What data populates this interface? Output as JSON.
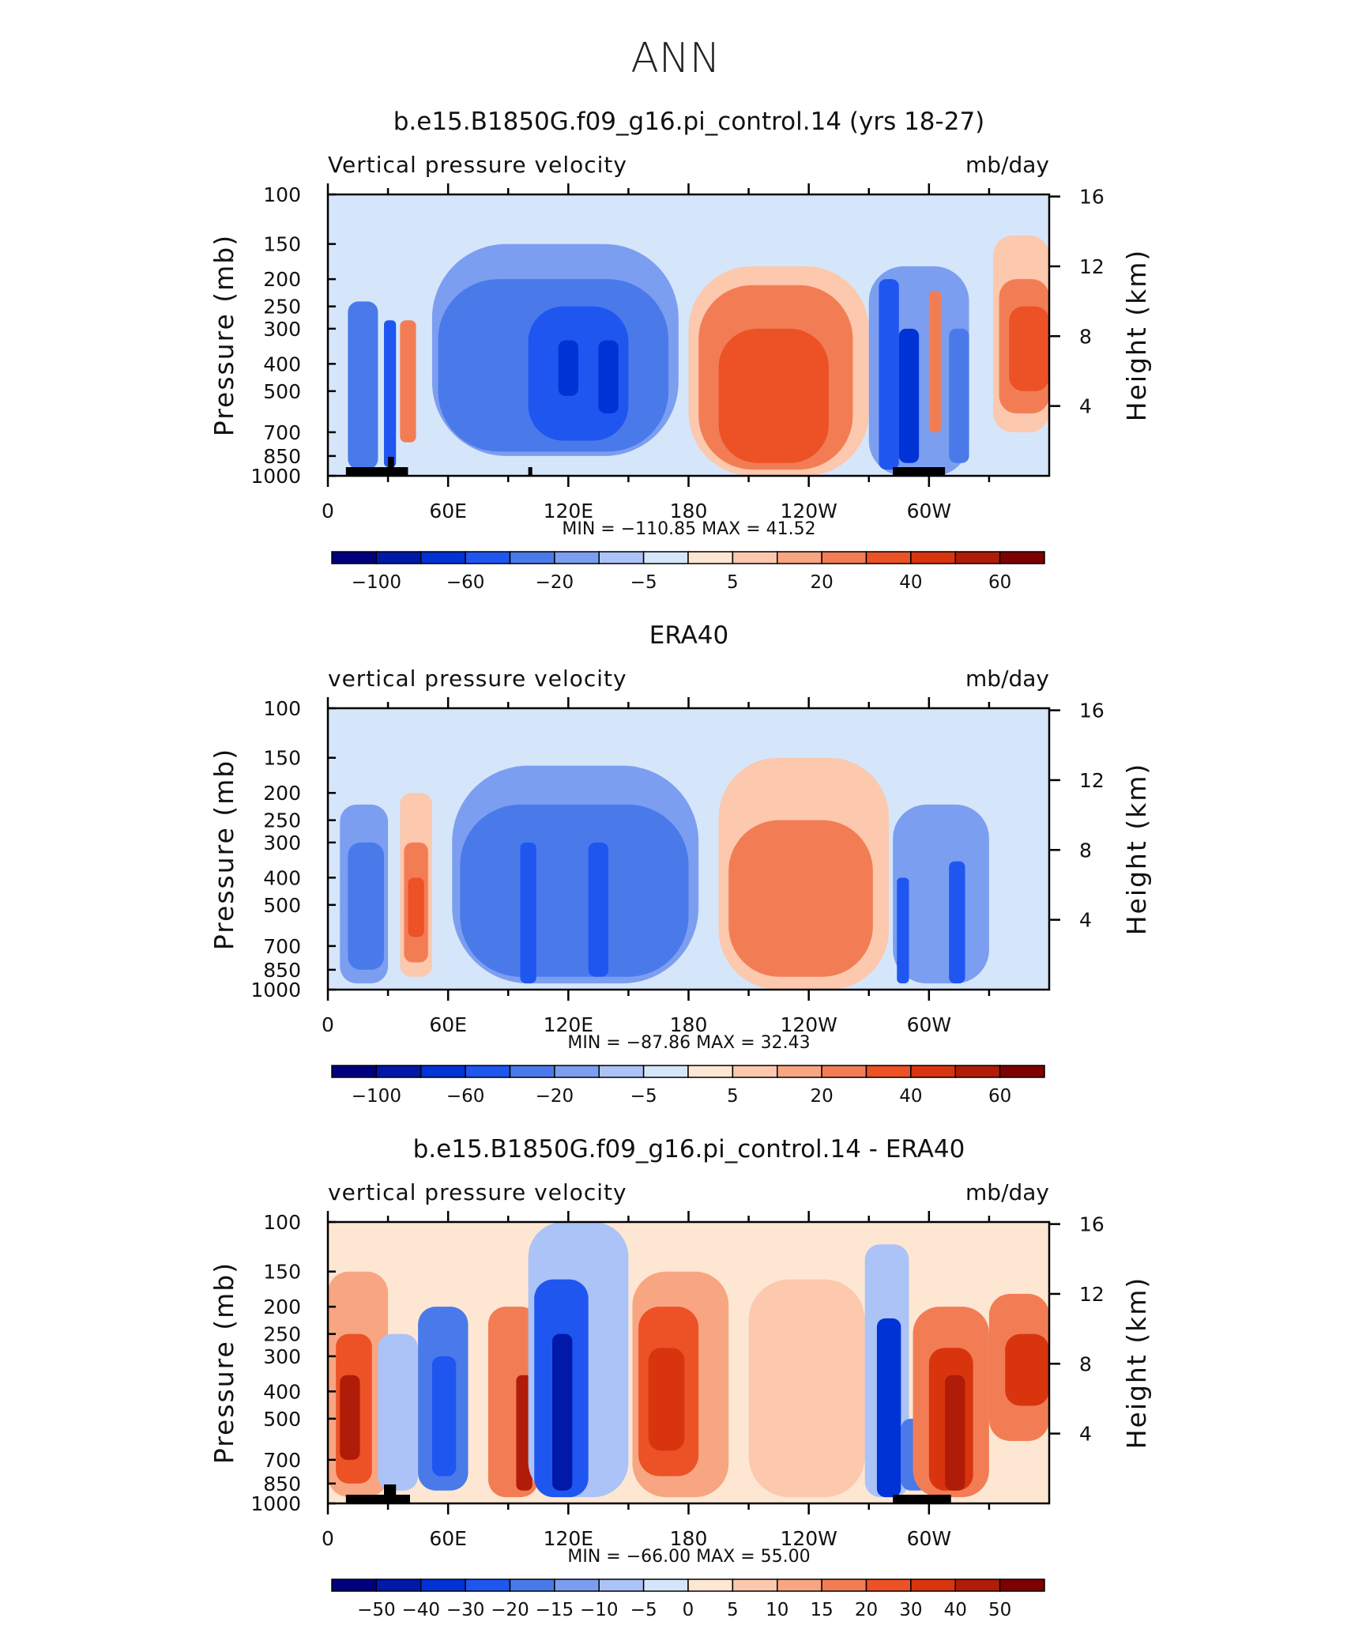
{
  "figure": {
    "title": "ANN"
  },
  "chart_data": [
    {
      "type": "heatmap",
      "title": "b.e15.B1850G.f09_g16.pi_control.14 (yrs 18-27)",
      "variable_label": "Vertical pressure velocity",
      "units": "mb/day",
      "ylabel": "Pressure (mb)",
      "y2label": "Height (km)",
      "yticks": [
        "100",
        "150",
        "200",
        "250",
        "300",
        "400",
        "500",
        "700",
        "850",
        "1000"
      ],
      "y2ticks": [
        "16",
        "12",
        "8",
        "4"
      ],
      "xticks": [
        "0",
        "60E",
        "120E",
        "180",
        "120W",
        "60W"
      ],
      "stats": "MIN = −110.85   MAX =  41.52",
      "colorbar_labels": [
        "−100",
        "−60",
        "−20",
        "−5",
        "5",
        "20",
        "40",
        "60"
      ],
      "cells": [
        {
          "lon": [
            5,
            45
          ],
          "p": [
            120,
            1000
          ],
          "value": -5
        },
        {
          "lon": [
            10,
            25
          ],
          "p": [
            240,
            950
          ],
          "value": -30
        },
        {
          "lon": [
            28,
            34
          ],
          "p": [
            280,
            930
          ],
          "value": -60
        },
        {
          "lon": [
            36,
            44
          ],
          "p": [
            280,
            760
          ],
          "value": 20
        },
        {
          "lon": [
            48,
            180
          ],
          "p": [
            100,
            1000
          ],
          "value": -5
        },
        {
          "lon": [
            52,
            175
          ],
          "p": [
            150,
            850
          ],
          "value": -20
        },
        {
          "lon": [
            55,
            170
          ],
          "p": [
            200,
            820
          ],
          "value": -40
        },
        {
          "lon": [
            100,
            150
          ],
          "p": [
            250,
            750
          ],
          "value": -60
        },
        {
          "lon": [
            115,
            125
          ],
          "p": [
            330,
            520
          ],
          "value": -80
        },
        {
          "lon": [
            135,
            145
          ],
          "p": [
            330,
            600
          ],
          "value": -80
        },
        {
          "lon": [
            180,
            270
          ],
          "p": [
            180,
            1000
          ],
          "value": 5
        },
        {
          "lon": [
            185,
            262
          ],
          "p": [
            210,
            950
          ],
          "value": 20
        },
        {
          "lon": [
            195,
            250
          ],
          "p": [
            300,
            900
          ],
          "value": 30
        },
        {
          "lon": [
            270,
            320
          ],
          "p": [
            180,
            1000
          ],
          "value": -20
        },
        {
          "lon": [
            275,
            285
          ],
          "p": [
            200,
            950
          ],
          "value": -60
        },
        {
          "lon": [
            285,
            295
          ],
          "p": [
            300,
            900
          ],
          "value": -80
        },
        {
          "lon": [
            300,
            306
          ],
          "p": [
            220,
            700
          ],
          "value": 20
        },
        {
          "lon": [
            310,
            320
          ],
          "p": [
            300,
            900
          ],
          "value": -40
        },
        {
          "lon": [
            332,
            360
          ],
          "p": [
            140,
            700
          ],
          "value": 5
        },
        {
          "lon": [
            335,
            360
          ],
          "p": [
            200,
            600
          ],
          "value": 20
        },
        {
          "lon": [
            340,
            360
          ],
          "p": [
            250,
            500
          ],
          "value": 30
        }
      ]
    },
    {
      "type": "heatmap",
      "title": "ERA40",
      "variable_label": "vertical pressure velocity",
      "units": "mb/day",
      "ylabel": "Pressure (mb)",
      "y2label": "Height (km)",
      "yticks": [
        "100",
        "150",
        "200",
        "250",
        "300",
        "400",
        "500",
        "700",
        "850",
        "1000"
      ],
      "y2ticks": [
        "16",
        "12",
        "8",
        "4"
      ],
      "xticks": [
        "0",
        "60E",
        "120E",
        "180",
        "120W",
        "60W"
      ],
      "stats": "MIN =  −87.86   MAX =   32.43",
      "colorbar_labels": [
        "−100",
        "−60",
        "−20",
        "−5",
        "5",
        "20",
        "40",
        "60"
      ],
      "cells": [
        {
          "lon": [
            5,
            32
          ],
          "p": [
            140,
            1000
          ],
          "value": -5
        },
        {
          "lon": [
            6,
            30
          ],
          "p": [
            220,
            950
          ],
          "value": -20
        },
        {
          "lon": [
            10,
            28
          ],
          "p": [
            300,
            850
          ],
          "value": -40
        },
        {
          "lon": [
            36,
            52
          ],
          "p": [
            200,
            900
          ],
          "value": 5
        },
        {
          "lon": [
            38,
            50
          ],
          "p": [
            300,
            800
          ],
          "value": 20
        },
        {
          "lon": [
            40,
            48
          ],
          "p": [
            400,
            650
          ],
          "value": 30
        },
        {
          "lon": [
            58,
            190
          ],
          "p": [
            120,
            1000
          ],
          "value": -5
        },
        {
          "lon": [
            62,
            185
          ],
          "p": [
            160,
            950
          ],
          "value": -20
        },
        {
          "lon": [
            66,
            180
          ],
          "p": [
            220,
            900
          ],
          "value": -30
        },
        {
          "lon": [
            96,
            104
          ],
          "p": [
            300,
            950
          ],
          "value": -60
        },
        {
          "lon": [
            130,
            140
          ],
          "p": [
            300,
            900
          ],
          "value": -60
        },
        {
          "lon": [
            195,
            280
          ],
          "p": [
            150,
            1000
          ],
          "value": 5
        },
        {
          "lon": [
            200,
            272
          ],
          "p": [
            250,
            900
          ],
          "value": 20
        },
        {
          "lon": [
            280,
            340
          ],
          "p": [
            140,
            1000
          ],
          "value": -5
        },
        {
          "lon": [
            282,
            330
          ],
          "p": [
            220,
            950
          ],
          "value": -20
        },
        {
          "lon": [
            284,
            290
          ],
          "p": [
            400,
            950
          ],
          "value": -60
        },
        {
          "lon": [
            310,
            318
          ],
          "p": [
            350,
            950
          ],
          "value": -60
        }
      ]
    },
    {
      "type": "heatmap",
      "title": "b.e15.B1850G.f09_g16.pi_control.14 - ERA40",
      "variable_label": "vertical pressure velocity",
      "units": "mb/day",
      "ylabel": "Pressure (mb)",
      "y2label": "Height (km)",
      "yticks": [
        "100",
        "150",
        "200",
        "250",
        "300",
        "400",
        "500",
        "700",
        "850",
        "1000"
      ],
      "y2ticks": [
        "16",
        "12",
        "8",
        "4"
      ],
      "xticks": [
        "0",
        "60E",
        "120E",
        "180",
        "120W",
        "60W"
      ],
      "stats": "MIN =  −66.00   MAX =  55.00",
      "colorbar_labels": [
        "−50",
        "−40",
        "−30",
        "−20",
        "−15",
        "−10",
        "−5",
        "0",
        "5",
        "10",
        "15",
        "20",
        "30",
        "40",
        "50"
      ],
      "cells": [
        {
          "lon": [
            0,
            360
          ],
          "p": [
            100,
            1000
          ],
          "value": 2
        },
        {
          "lon": [
            0,
            30
          ],
          "p": [
            150,
            950
          ],
          "value": 10
        },
        {
          "lon": [
            4,
            22
          ],
          "p": [
            250,
            850
          ],
          "value": 20
        },
        {
          "lon": [
            6,
            16
          ],
          "p": [
            350,
            700
          ],
          "value": 40
        },
        {
          "lon": [
            25,
            45
          ],
          "p": [
            250,
            900
          ],
          "value": -10
        },
        {
          "lon": [
            45,
            70
          ],
          "p": [
            200,
            900
          ],
          "value": -20
        },
        {
          "lon": [
            52,
            64
          ],
          "p": [
            300,
            800
          ],
          "value": -30
        },
        {
          "lon": [
            80,
            105
          ],
          "p": [
            200,
            950
          ],
          "value": 15
        },
        {
          "lon": [
            94,
            102
          ],
          "p": [
            350,
            900
          ],
          "value": 40
        },
        {
          "lon": [
            100,
            150
          ],
          "p": [
            100,
            950
          ],
          "value": -10
        },
        {
          "lon": [
            103,
            130
          ],
          "p": [
            160,
            950
          ],
          "value": -30
        },
        {
          "lon": [
            112,
            122
          ],
          "p": [
            250,
            900
          ],
          "value": -50
        },
        {
          "lon": [
            152,
            200
          ],
          "p": [
            150,
            950
          ],
          "value": 10
        },
        {
          "lon": [
            155,
            185
          ],
          "p": [
            200,
            800
          ],
          "value": 20
        },
        {
          "lon": [
            160,
            178
          ],
          "p": [
            280,
            650
          ],
          "value": 30
        },
        {
          "lon": [
            210,
            268
          ],
          "p": [
            160,
            950
          ],
          "value": 5
        },
        {
          "lon": [
            268,
            290
          ],
          "p": [
            120,
            950
          ],
          "value": -10
        },
        {
          "lon": [
            274,
            286
          ],
          "p": [
            220,
            950
          ],
          "value": -40
        },
        {
          "lon": [
            286,
            300
          ],
          "p": [
            500,
            900
          ],
          "value": -20
        },
        {
          "lon": [
            292,
            330
          ],
          "p": [
            200,
            950
          ],
          "value": 15
        },
        {
          "lon": [
            300,
            322
          ],
          "p": [
            280,
            900
          ],
          "value": 30
        },
        {
          "lon": [
            308,
            318
          ],
          "p": [
            350,
            900
          ],
          "value": 40
        },
        {
          "lon": [
            330,
            360
          ],
          "p": [
            180,
            600
          ],
          "value": 15
        },
        {
          "lon": [
            338,
            360
          ],
          "p": [
            250,
            450
          ],
          "value": 30
        }
      ]
    }
  ],
  "colorbar_colors": {
    "panel_a": [
      "#00007f",
      "#0019a8",
      "#0033d6",
      "#1f56f0",
      "#4a7aea",
      "#7c9ef0",
      "#abc3f6",
      "#d6e6fa",
      "#fde7d3",
      "#fcc8ae",
      "#f8a582",
      "#f27d55",
      "#ec5226",
      "#d8350f",
      "#b01c08",
      "#7f0000"
    ],
    "panel_c": [
      "#00007f",
      "#0019a8",
      "#0033d6",
      "#1f56f0",
      "#4a7aea",
      "#7c9ef0",
      "#abc3f6",
      "#d6e6fa",
      "#fde7d3",
      "#fcc8ae",
      "#f8a582",
      "#f27d55",
      "#ec5226",
      "#d8350f",
      "#b01c08",
      "#7f0000"
    ]
  },
  "colorbar_thresholds": {
    "panel_a": [
      -100,
      -80,
      -60,
      -40,
      -20,
      -10,
      -5,
      0,
      5,
      10,
      20,
      30,
      40,
      50,
      60
    ],
    "panel_c": [
      -50,
      -40,
      -30,
      -20,
      -15,
      -10,
      -5,
      0,
      5,
      10,
      15,
      20,
      30,
      40,
      50
    ]
  },
  "land_bars": [
    [
      {
        "lon": [
          9,
          40
        ]
      },
      {
        "lon": [
          30,
          33
        ],
        "raised": true
      },
      {
        "lon": [
          100,
          102
        ]
      },
      {
        "lon": [
          282,
          308
        ]
      }
    ],
    [],
    [
      {
        "lon": [
          9,
          41
        ]
      },
      {
        "lon": [
          28,
          34
        ],
        "raised": true
      },
      {
        "lon": [
          282,
          311
        ]
      }
    ]
  ]
}
